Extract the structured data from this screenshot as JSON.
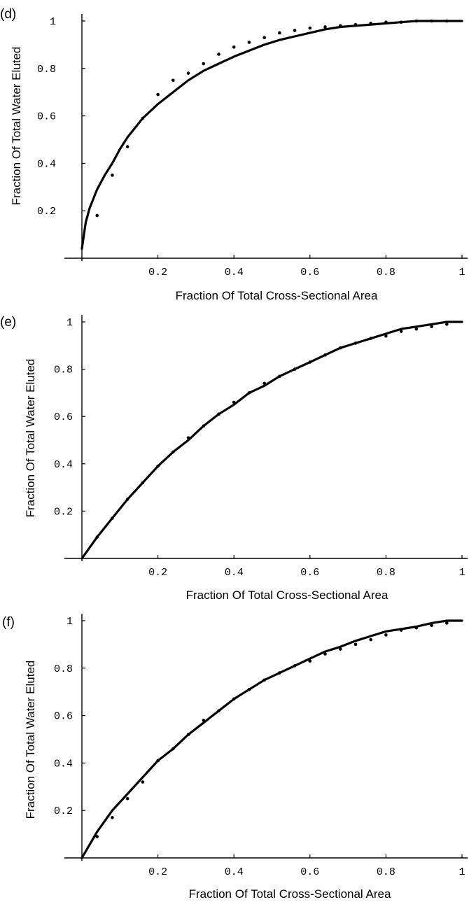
{
  "chart_data": [
    {
      "type": "line",
      "panel_label": "(d)",
      "xlabel": "Fraction Of Total Cross-Sectional Area",
      "ylabel": "Fraction Of Total Water Eluted",
      "xlim": [
        0,
        1
      ],
      "ylim": [
        0,
        1
      ],
      "x_ticks": [
        0.2,
        0.4,
        0.6,
        0.8,
        1
      ],
      "x_tick_labels": [
        "0.2",
        "0.4",
        "0.6",
        "0.8",
        "1"
      ],
      "y_ticks": [
        0.2,
        0.4,
        0.6,
        0.8,
        1
      ],
      "y_tick_labels": [
        "0.2",
        "0.4",
        "0.6",
        "0.8",
        "1"
      ],
      "grid": false,
      "series": [
        {
          "kind": "line",
          "x": [
            0.0,
            0.01,
            0.02,
            0.04,
            0.06,
            0.08,
            0.1,
            0.12,
            0.16,
            0.2,
            0.24,
            0.28,
            0.32,
            0.36,
            0.4,
            0.44,
            0.48,
            0.52,
            0.56,
            0.6,
            0.64,
            0.68,
            0.72,
            0.76,
            0.8,
            0.84,
            0.88,
            0.92,
            0.96,
            1.0
          ],
          "y": [
            0.04,
            0.15,
            0.21,
            0.29,
            0.35,
            0.4,
            0.46,
            0.51,
            0.59,
            0.65,
            0.7,
            0.75,
            0.79,
            0.82,
            0.85,
            0.875,
            0.9,
            0.92,
            0.935,
            0.95,
            0.965,
            0.975,
            0.98,
            0.985,
            0.99,
            0.995,
            1.0,
            1.0,
            1.0,
            1.0
          ]
        },
        {
          "kind": "points",
          "x": [
            0.04,
            0.08,
            0.12,
            0.16,
            0.2,
            0.24,
            0.28,
            0.32,
            0.36,
            0.4,
            0.44,
            0.48,
            0.52,
            0.56,
            0.6,
            0.64,
            0.68,
            0.72,
            0.76,
            0.8,
            0.84,
            0.88,
            0.92,
            0.96
          ],
          "y": [
            0.18,
            0.35,
            0.47,
            0.59,
            0.69,
            0.75,
            0.78,
            0.82,
            0.86,
            0.89,
            0.91,
            0.93,
            0.95,
            0.96,
            0.97,
            0.975,
            0.98,
            0.985,
            0.99,
            0.995,
            0.995,
            1.0,
            1.0,
            1.0
          ]
        }
      ]
    },
    {
      "type": "line",
      "panel_label": "(e)",
      "xlabel": "Fraction Of Total Cross-Sectional Area",
      "ylabel": "Fraction Of Total Water Eluted",
      "xlim": [
        0,
        1
      ],
      "ylim": [
        0,
        1
      ],
      "x_ticks": [
        0.2,
        0.4,
        0.6,
        0.8,
        1
      ],
      "x_tick_labels": [
        "0.2",
        "0.4",
        "0.6",
        "0.8",
        "1"
      ],
      "y_ticks": [
        0.2,
        0.4,
        0.6,
        0.8,
        1
      ],
      "y_tick_labels": [
        "0.2",
        "0.4",
        "0.6",
        "0.8",
        "1"
      ],
      "grid": false,
      "series": [
        {
          "kind": "line",
          "x": [
            0.0,
            0.04,
            0.08,
            0.12,
            0.16,
            0.2,
            0.24,
            0.28,
            0.32,
            0.36,
            0.4,
            0.44,
            0.48,
            0.52,
            0.56,
            0.6,
            0.64,
            0.68,
            0.72,
            0.76,
            0.8,
            0.84,
            0.88,
            0.92,
            0.96,
            1.0
          ],
          "y": [
            0.0,
            0.09,
            0.17,
            0.25,
            0.32,
            0.39,
            0.45,
            0.5,
            0.56,
            0.61,
            0.65,
            0.7,
            0.73,
            0.77,
            0.8,
            0.83,
            0.86,
            0.89,
            0.91,
            0.93,
            0.95,
            0.97,
            0.98,
            0.99,
            1.0,
            1.0
          ]
        },
        {
          "kind": "points",
          "x": [
            0.04,
            0.08,
            0.12,
            0.16,
            0.2,
            0.24,
            0.28,
            0.32,
            0.36,
            0.4,
            0.44,
            0.48,
            0.52,
            0.56,
            0.6,
            0.64,
            0.68,
            0.72,
            0.76,
            0.8,
            0.84,
            0.88,
            0.92,
            0.96
          ],
          "y": [
            0.09,
            0.17,
            0.25,
            0.32,
            0.39,
            0.45,
            0.51,
            0.56,
            0.61,
            0.66,
            0.7,
            0.74,
            0.77,
            0.8,
            0.83,
            0.86,
            0.89,
            0.91,
            0.93,
            0.94,
            0.96,
            0.97,
            0.98,
            0.99
          ]
        }
      ]
    },
    {
      "type": "line",
      "panel_label": "(f)",
      "xlabel": "Fraction Of Total Cross-Sectional Area",
      "ylabel": "Fraction Of Total Water Eluted",
      "xlim": [
        0,
        1
      ],
      "ylim": [
        0,
        1
      ],
      "x_ticks": [
        0.2,
        0.4,
        0.6,
        0.8,
        1
      ],
      "x_tick_labels": [
        "0.2",
        "0.4",
        "0.6",
        "0.8",
        "1"
      ],
      "y_ticks": [
        0.2,
        0.4,
        0.6,
        0.8,
        1
      ],
      "y_tick_labels": [
        "0.2",
        "0.4",
        "0.6",
        "0.8",
        "1"
      ],
      "grid": false,
      "series": [
        {
          "kind": "line",
          "x": [
            0.0,
            0.04,
            0.08,
            0.12,
            0.16,
            0.2,
            0.24,
            0.28,
            0.32,
            0.36,
            0.4,
            0.44,
            0.48,
            0.52,
            0.56,
            0.6,
            0.64,
            0.68,
            0.72,
            0.76,
            0.8,
            0.84,
            0.88,
            0.92,
            0.96,
            1.0
          ],
          "y": [
            0.0,
            0.11,
            0.2,
            0.27,
            0.34,
            0.41,
            0.46,
            0.52,
            0.57,
            0.62,
            0.67,
            0.71,
            0.75,
            0.78,
            0.81,
            0.84,
            0.87,
            0.89,
            0.915,
            0.935,
            0.955,
            0.965,
            0.975,
            0.99,
            1.0,
            1.0
          ]
        },
        {
          "kind": "points",
          "x": [
            0.04,
            0.08,
            0.12,
            0.16,
            0.2,
            0.24,
            0.28,
            0.32,
            0.36,
            0.4,
            0.44,
            0.48,
            0.52,
            0.56,
            0.6,
            0.64,
            0.68,
            0.72,
            0.76,
            0.8,
            0.84,
            0.88,
            0.92,
            0.96
          ],
          "y": [
            0.09,
            0.17,
            0.25,
            0.32,
            0.41,
            0.46,
            0.52,
            0.58,
            0.62,
            0.67,
            0.71,
            0.75,
            0.78,
            0.81,
            0.83,
            0.86,
            0.88,
            0.9,
            0.92,
            0.94,
            0.96,
            0.97,
            0.98,
            0.99
          ]
        }
      ]
    }
  ]
}
